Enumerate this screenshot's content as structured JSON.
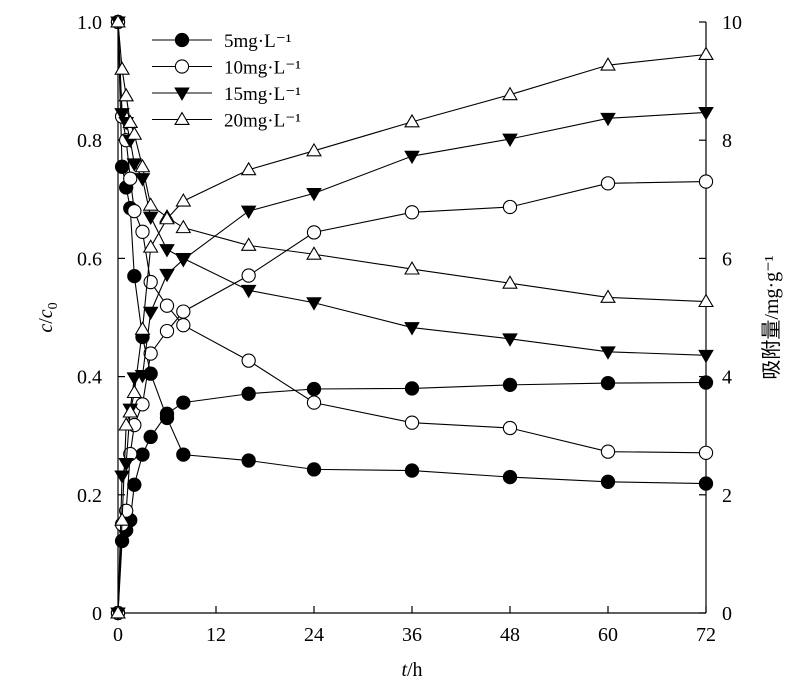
{
  "chart_data": {
    "type": "line",
    "xlabel": {
      "italic": "t",
      "rest": "/h"
    },
    "ylabel_left": {
      "italic": "c",
      "sub_italic": "c",
      "sub": "0"
    },
    "ylabel_right": "吸附量/mg·g⁻¹",
    "x_ticks": [
      "0",
      "12",
      "24",
      "36",
      "48",
      "60",
      "72"
    ],
    "y_left_ticks": [
      "0",
      "0.2",
      "0.4",
      "0.6",
      "0.8",
      "1.0"
    ],
    "y_right_ticks": [
      "0",
      "2",
      "4",
      "6",
      "8",
      "10"
    ],
    "xlim": [
      0,
      72
    ],
    "ylim_left": [
      0,
      1.0
    ],
    "ylim_right": [
      0,
      10
    ],
    "legend_position": "top-left",
    "legend": [
      {
        "label": "5mg·L⁻¹",
        "marker": "circle-filled"
      },
      {
        "label": "10mg·L⁻¹",
        "marker": "circle-open"
      },
      {
        "label": "15mg·L⁻¹",
        "marker": "triangle-down-filled"
      },
      {
        "label": "20mg·L⁻¹",
        "marker": "triangle-up-open"
      }
    ],
    "x": [
      0,
      0.5,
      1,
      1.5,
      2,
      3,
      4,
      6,
      8,
      16,
      24,
      36,
      48,
      60,
      72
    ],
    "series": [
      {
        "name": "5mg·L⁻¹",
        "axis": "left",
        "marker": "circle-filled",
        "values": [
          1.0,
          0.755,
          0.72,
          0.685,
          0.57,
          0.467,
          0.405,
          0.33,
          0.268,
          0.258,
          0.243,
          0.241,
          0.23,
          0.222,
          0.219
        ]
      },
      {
        "name": "5mg·L⁻¹",
        "axis": "right",
        "marker": "circle-filled",
        "values": [
          0,
          1.22,
          1.4,
          1.57,
          2.17,
          2.68,
          2.98,
          3.37,
          3.56,
          3.71,
          3.79,
          3.8,
          3.86,
          3.89,
          3.9
        ]
      },
      {
        "name": "10mg·L⁻¹",
        "axis": "left",
        "marker": "circle-open",
        "values": [
          1.0,
          0.84,
          0.8,
          0.735,
          0.68,
          0.645,
          0.56,
          0.52,
          0.487,
          0.427,
          0.356,
          0.322,
          0.313,
          0.273,
          0.271
        ]
      },
      {
        "name": "10mg·L⁻¹",
        "axis": "right",
        "marker": "circle-open",
        "values": [
          0,
          1.5,
          1.73,
          2.69,
          3.18,
          3.53,
          4.39,
          4.77,
          5.1,
          5.71,
          6.44,
          6.78,
          6.87,
          7.27,
          7.3
        ]
      },
      {
        "name": "15mg·L⁻¹",
        "axis": "left",
        "marker": "triangle-down-filled",
        "values": [
          1.0,
          0.845,
          0.83,
          0.8,
          0.76,
          0.735,
          0.67,
          0.615,
          0.6,
          0.546,
          0.525,
          0.483,
          0.464,
          0.442,
          0.436
        ]
      },
      {
        "name": "15mg·L⁻¹",
        "axis": "right",
        "marker": "triangle-down-filled",
        "values": [
          0,
          2.32,
          2.53,
          3.45,
          3.98,
          4.02,
          5.09,
          5.73,
          5.98,
          6.8,
          7.1,
          7.73,
          8.02,
          8.37,
          8.47
        ]
      },
      {
        "name": "20mg·L⁻¹",
        "axis": "left",
        "marker": "triangle-up-open",
        "values": [
          1.0,
          0.92,
          0.875,
          0.83,
          0.81,
          0.755,
          0.69,
          0.67,
          0.652,
          0.622,
          0.607,
          0.582,
          0.558,
          0.534,
          0.527
        ]
      },
      {
        "name": "20mg·L⁻¹",
        "axis": "right",
        "marker": "triangle-up-open",
        "values": [
          0,
          1.57,
          3.18,
          3.4,
          3.73,
          4.8,
          6.19,
          6.67,
          6.97,
          7.5,
          7.82,
          8.31,
          8.77,
          9.27,
          9.45
        ]
      }
    ]
  }
}
